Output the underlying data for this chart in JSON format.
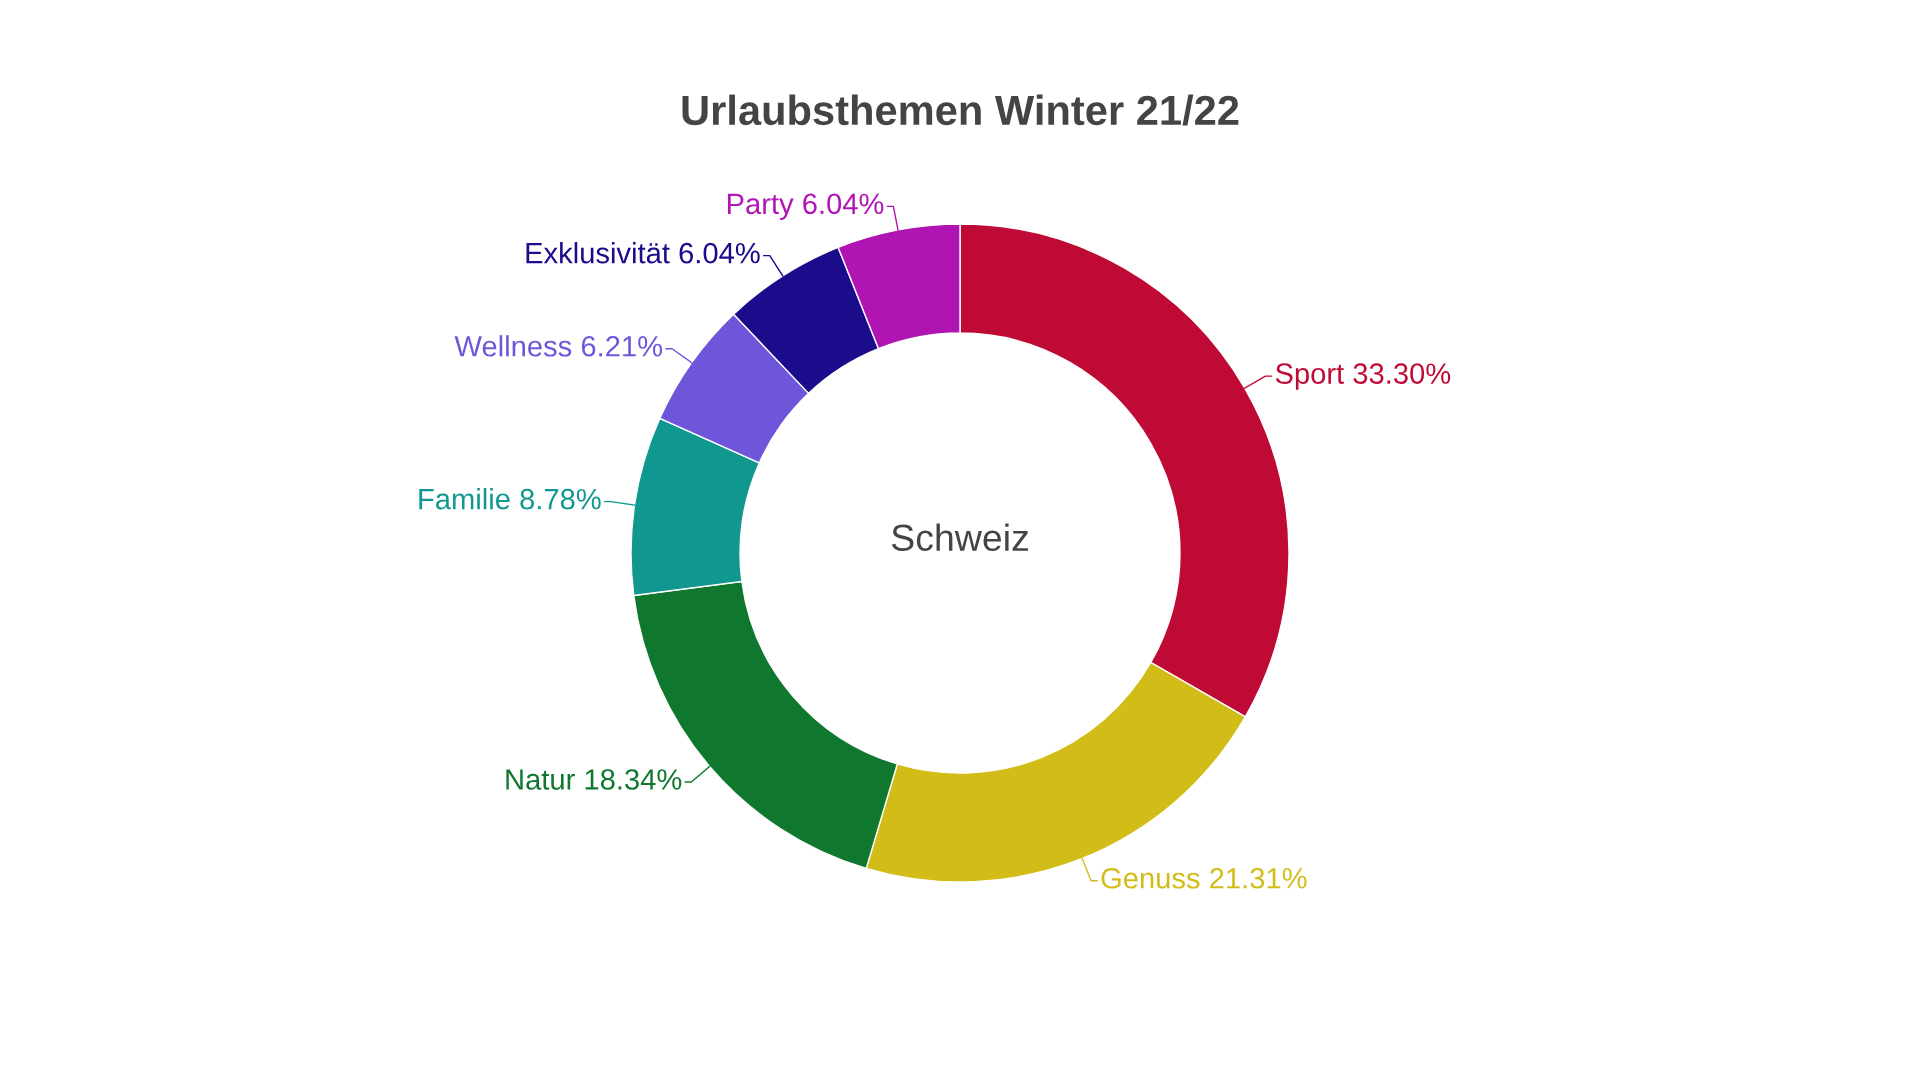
{
  "chart_data": {
    "type": "donut",
    "title": "Urlaubsthemen Winter 21/22",
    "categories": [
      "Sport",
      "Genuss",
      "Natur",
      "Familie",
      "Wellness",
      "Exklusivität",
      "Party"
    ],
    "values": [
      33.3,
      21.31,
      18.34,
      8.78,
      6.21,
      6.04,
      6.04
    ],
    "colors": [
      "#be0a34",
      "#d2bc18",
      "#0f782e",
      "#109890",
      "#6f55da",
      "#1b0c8c",
      "#b015b4"
    ],
    "value_labels": [
      "33.30%",
      "21.31%",
      "18.34%",
      "8.78%",
      "6.21%",
      "6.04%",
      "6.04%"
    ],
    "annotations": [
      "Schweiz"
    ]
  }
}
